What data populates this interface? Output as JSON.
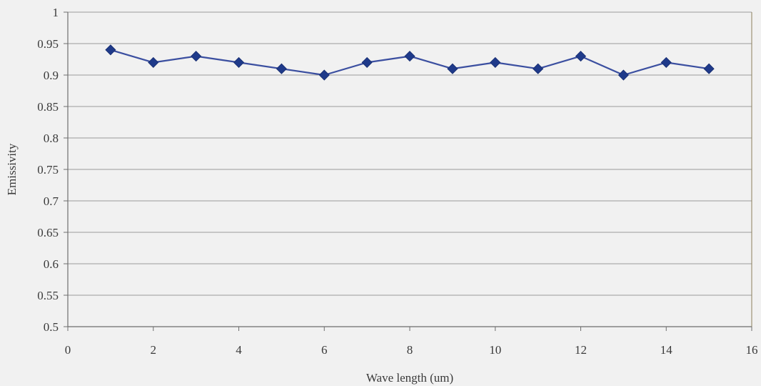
{
  "chart_data": {
    "type": "line",
    "xlabel": "Wave length (um)",
    "ylabel": "Emissivity",
    "xlim": [
      0,
      16
    ],
    "ylim": [
      0.5,
      1
    ],
    "x_ticks": [
      0,
      2,
      4,
      6,
      8,
      10,
      12,
      14,
      16
    ],
    "x_tick_labels": [
      "0",
      "2",
      "4",
      "6",
      "8",
      "10",
      "12",
      "14",
      "16"
    ],
    "y_ticks": [
      0.5,
      0.55,
      0.6,
      0.65,
      0.7,
      0.75,
      0.8,
      0.85,
      0.9,
      0.95,
      1
    ],
    "y_tick_labels": [
      "0.5",
      "0.55",
      "0.6",
      "0.65",
      "0.7",
      "0.75",
      "0.8",
      "0.85",
      "0.9",
      "0.95",
      "1"
    ],
    "grid": "horizontal",
    "legend": "none",
    "series": [
      {
        "x": [
          1,
          2,
          3,
          4,
          5,
          6,
          7,
          8,
          9,
          10,
          11,
          12,
          13,
          14,
          15
        ],
        "values": [
          0.94,
          0.92,
          0.93,
          0.92,
          0.91,
          0.9,
          0.92,
          0.93,
          0.91,
          0.92,
          0.91,
          0.93,
          0.9,
          0.92,
          0.91
        ],
        "marker": "diamond",
        "color": "#1f3a8a"
      }
    ],
    "colors": {
      "background": "#f1f1f1",
      "gridline": "#9b9b9b",
      "frame": "#8c7f5a",
      "line": "#3b4fa0",
      "marker": "#1f3a8a"
    }
  }
}
